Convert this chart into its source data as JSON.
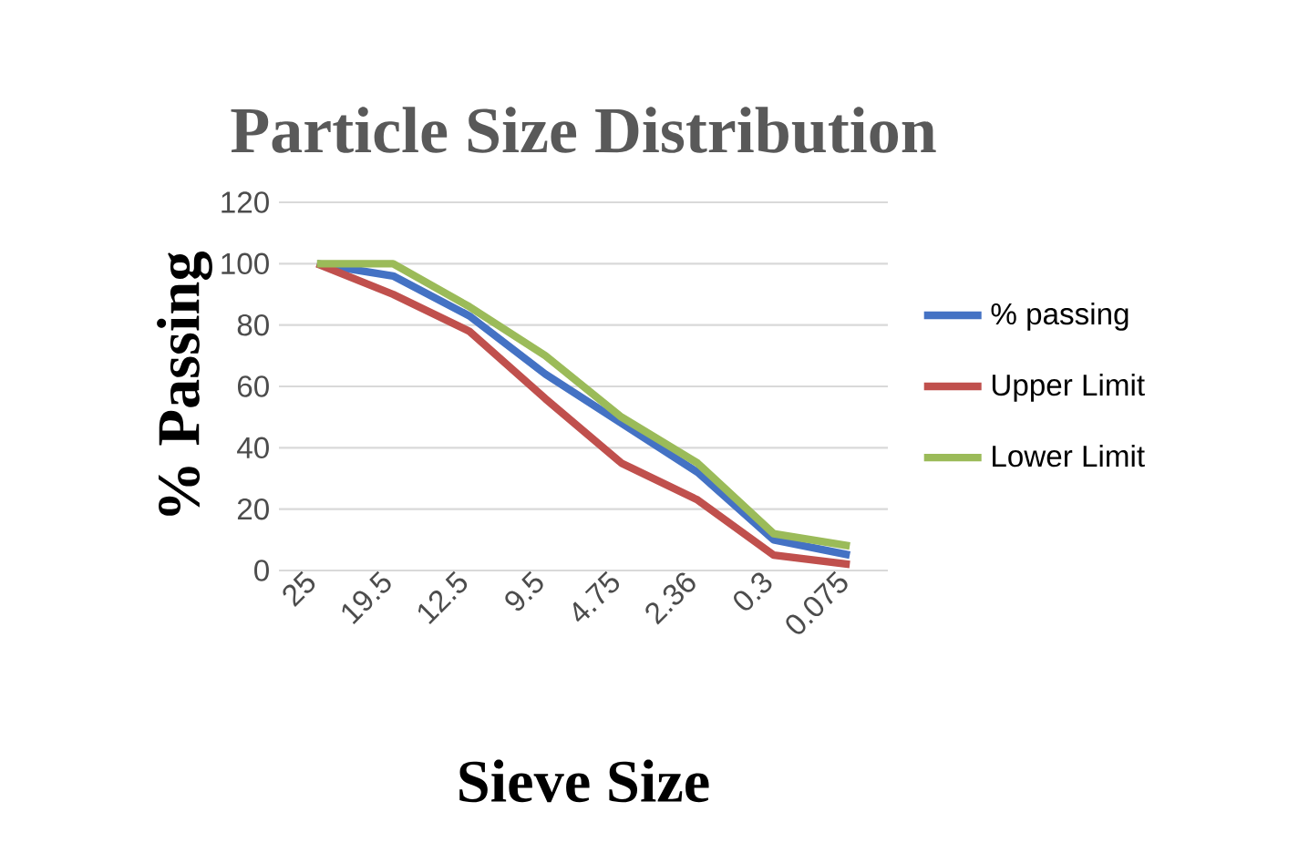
{
  "chart_data": {
    "type": "line",
    "title": "Particle Size Distribution",
    "xlabel": "Sieve Size",
    "ylabel": "% Passing",
    "categories": [
      "25",
      "19.5",
      "12.5",
      "9.5",
      "4.75",
      "2.36",
      "0.3",
      "0.075"
    ],
    "series": [
      {
        "name": "% passing",
        "color": "#4472c4",
        "values": [
          100,
          96,
          83,
          64,
          48,
          32,
          10,
          5
        ]
      },
      {
        "name": "Upper Limit",
        "color": "#c0504d",
        "values": [
          100,
          90,
          78,
          56,
          35,
          23,
          5,
          2
        ]
      },
      {
        "name": "Lower Limit",
        "color": "#9bbb59",
        "values": [
          100,
          100,
          86,
          70,
          50,
          35,
          12,
          8
        ]
      }
    ],
    "ylim": [
      0,
      120
    ],
    "yticks": [
      0,
      20,
      40,
      60,
      80,
      100,
      120
    ],
    "grid": "y",
    "legend": "right",
    "marker": "none",
    "line_style": "solid"
  }
}
